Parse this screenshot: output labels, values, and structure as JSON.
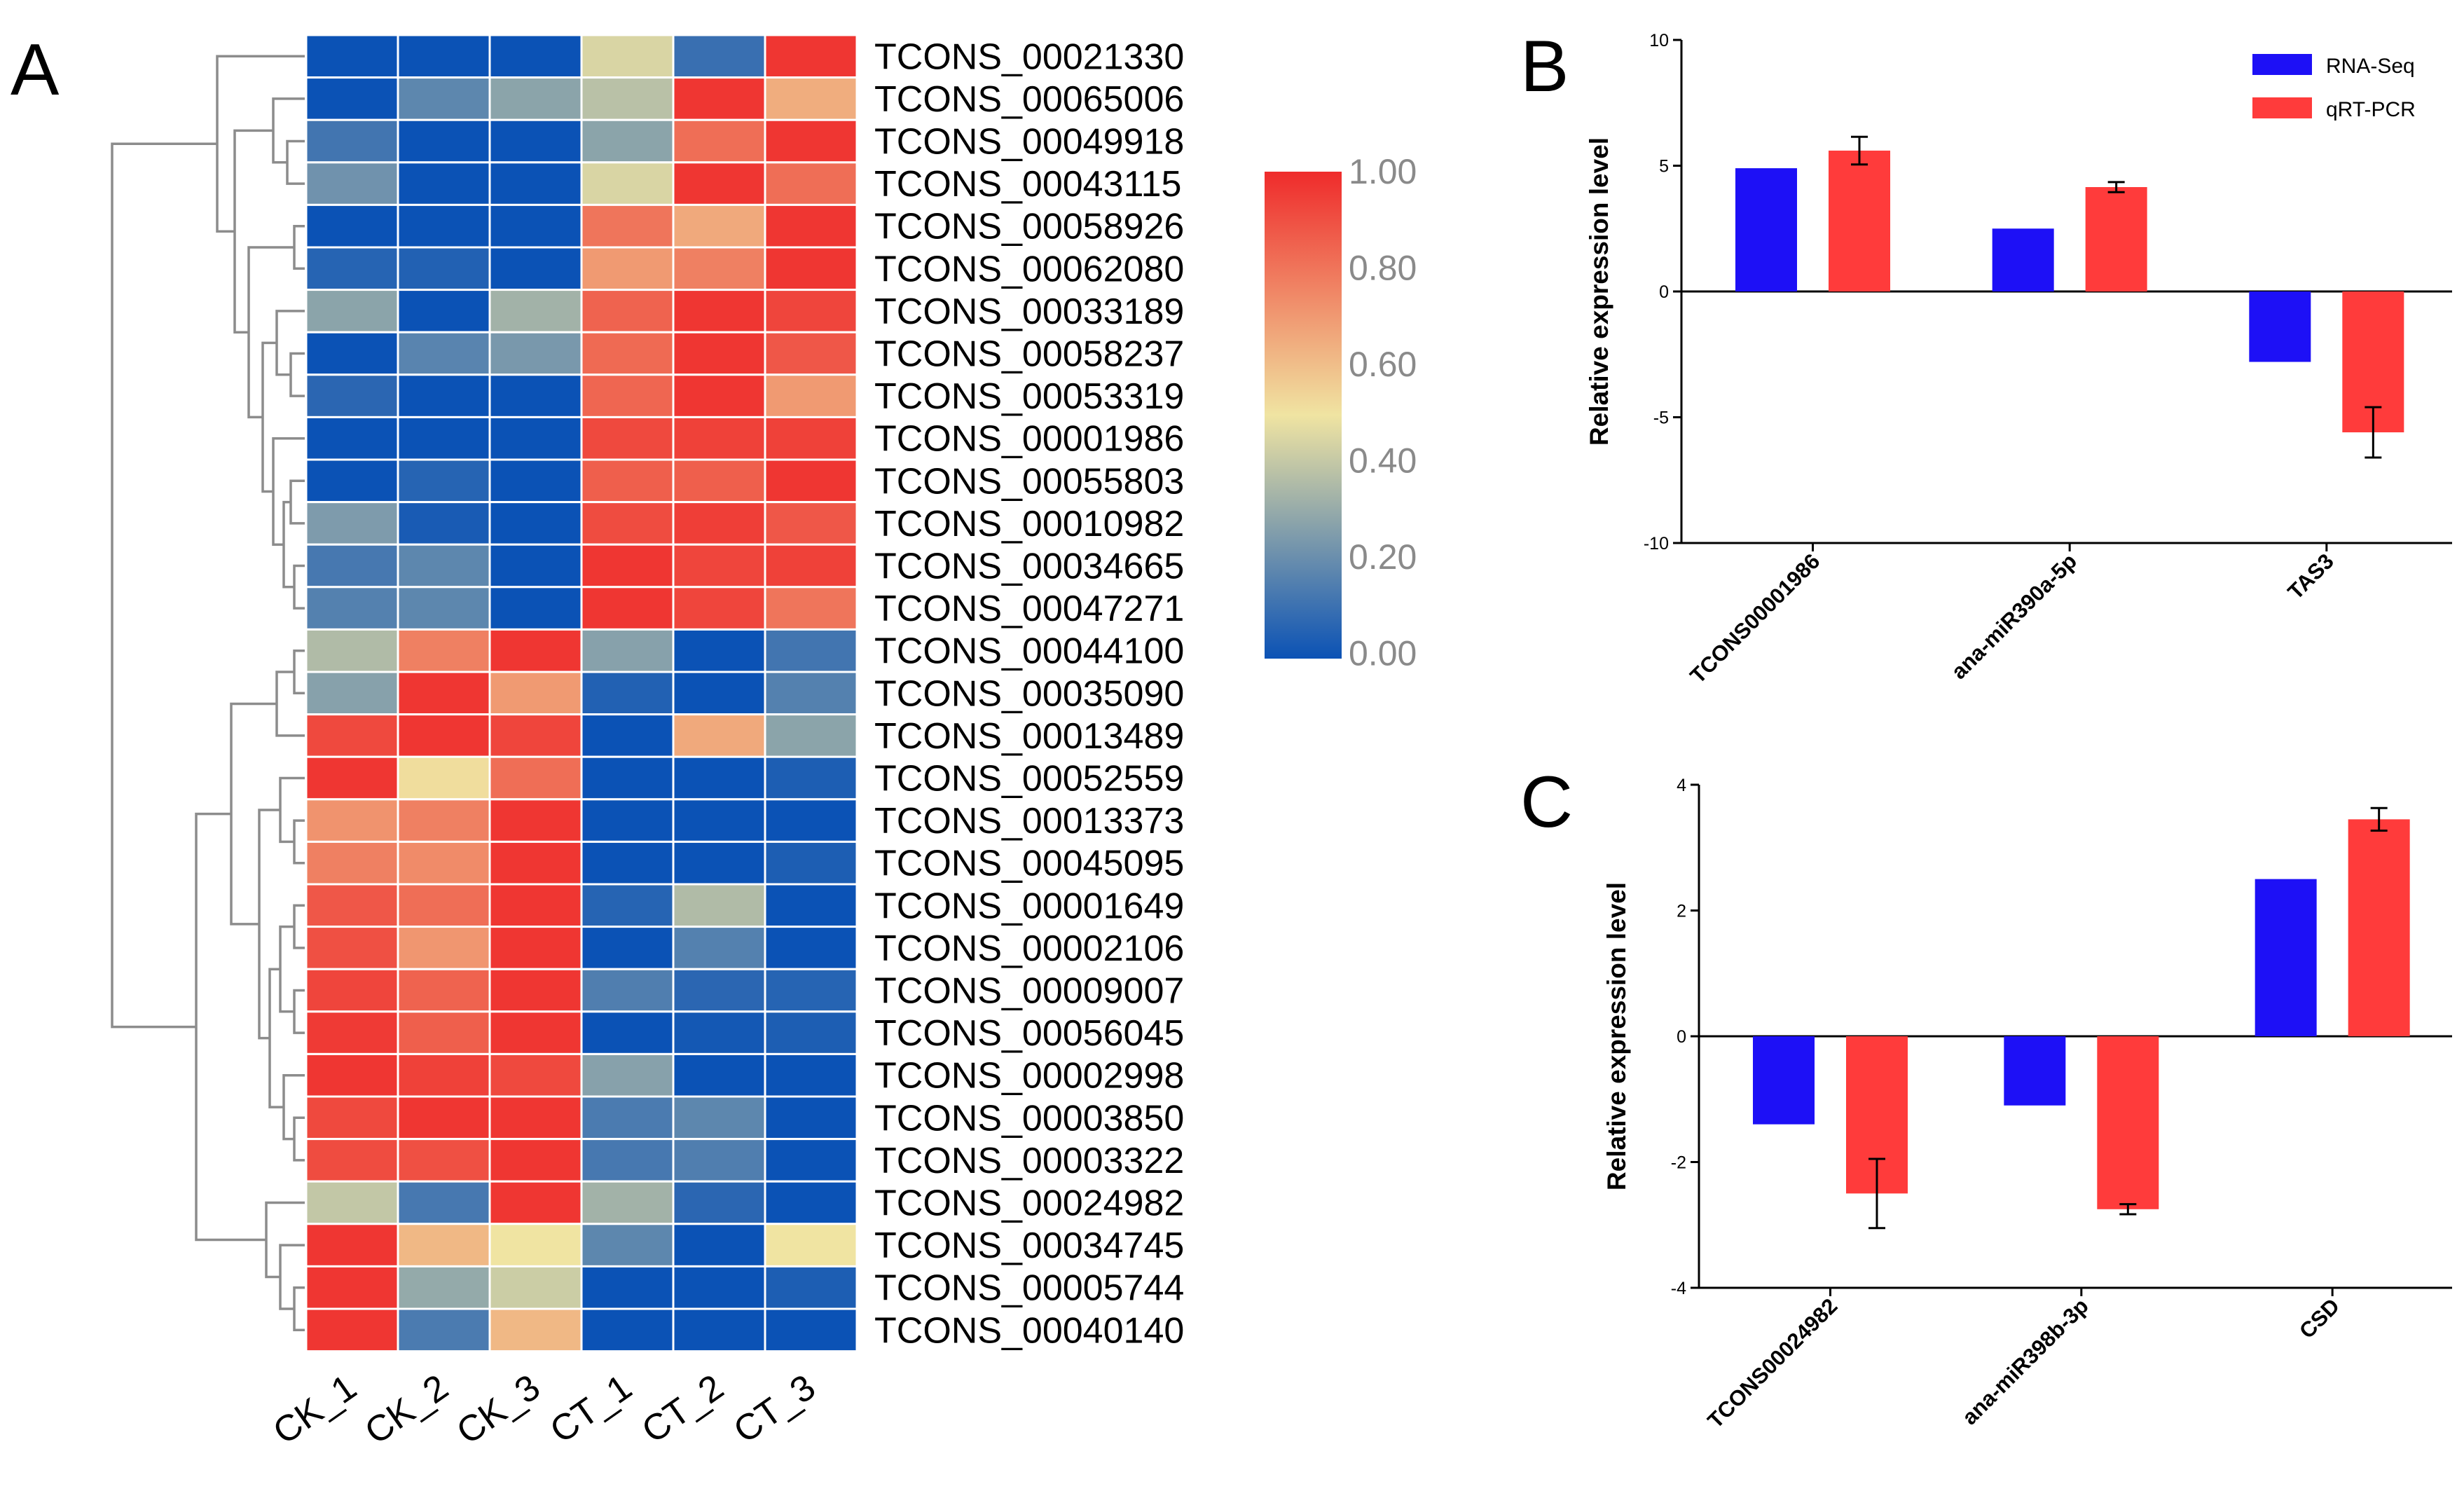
{
  "figure": {
    "panel_labels": [
      "A",
      "B",
      "C"
    ]
  },
  "chart_data": [
    {
      "type": "heatmap",
      "panel": "A",
      "title": "",
      "columns": [
        "CK_1",
        "CK_2",
        "CK_3",
        "CT_1",
        "CT_2",
        "CT_3"
      ],
      "rows": [
        "TCONS_00021330",
        "TCONS_00065006",
        "TCONS_00049918",
        "TCONS_00043115",
        "TCONS_00058926",
        "TCONS_00062080",
        "TCONS_00033189",
        "TCONS_00058237",
        "TCONS_00053319",
        "TCONS_00001986",
        "TCONS_00055803",
        "TCONS_00010982",
        "TCONS_00034665",
        "TCONS_00047271",
        "TCONS_00044100",
        "TCONS_00035090",
        "TCONS_00013489",
        "TCONS_00052559",
        "TCONS_00013373",
        "TCONS_00045095",
        "TCONS_00001649",
        "TCONS_00002106",
        "TCONS_00009007",
        "TCONS_00056045",
        "TCONS_00002998",
        "TCONS_00003850",
        "TCONS_00003322",
        "TCONS_00024982",
        "TCONS_00034745",
        "TCONS_00005744",
        "TCONS_00040140"
      ],
      "values": [
        [
          0.0,
          0.0,
          0.0,
          0.45,
          0.1,
          0.97
        ],
        [
          0.0,
          0.18,
          0.28,
          0.38,
          0.97,
          0.65
        ],
        [
          0.12,
          0.0,
          0.0,
          0.28,
          0.82,
          0.97
        ],
        [
          0.22,
          0.0,
          0.0,
          0.45,
          0.97,
          0.82
        ],
        [
          0.0,
          0.0,
          0.0,
          0.8,
          0.66,
          0.97
        ],
        [
          0.06,
          0.05,
          0.0,
          0.7,
          0.77,
          0.97
        ],
        [
          0.28,
          0.0,
          0.33,
          0.85,
          0.97,
          0.93
        ],
        [
          0.0,
          0.17,
          0.24,
          0.83,
          0.97,
          0.88
        ],
        [
          0.07,
          0.0,
          0.0,
          0.84,
          0.97,
          0.7
        ],
        [
          0.0,
          0.0,
          0.0,
          0.92,
          0.94,
          0.94
        ],
        [
          0.0,
          0.06,
          0.0,
          0.86,
          0.86,
          0.97
        ],
        [
          0.25,
          0.03,
          0.0,
          0.91,
          0.95,
          0.88
        ],
        [
          0.13,
          0.18,
          0.0,
          0.97,
          0.93,
          0.94
        ],
        [
          0.16,
          0.18,
          0.0,
          0.97,
          0.93,
          0.8
        ],
        [
          0.36,
          0.77,
          0.97,
          0.27,
          0.0,
          0.12
        ],
        [
          0.27,
          0.97,
          0.7,
          0.05,
          0.0,
          0.16
        ],
        [
          0.92,
          0.97,
          0.93,
          0.0,
          0.66,
          0.28
        ],
        [
          0.97,
          0.52,
          0.82,
          0.0,
          0.0,
          0.04
        ],
        [
          0.72,
          0.77,
          0.97,
          0.0,
          0.0,
          0.0
        ],
        [
          0.77,
          0.74,
          0.97,
          0.0,
          0.0,
          0.04
        ],
        [
          0.88,
          0.82,
          0.97,
          0.06,
          0.36,
          0.0
        ],
        [
          0.9,
          0.71,
          0.97,
          0.0,
          0.16,
          0.0
        ],
        [
          0.93,
          0.85,
          0.97,
          0.15,
          0.07,
          0.06
        ],
        [
          0.96,
          0.86,
          0.97,
          0.0,
          0.02,
          0.04
        ],
        [
          0.97,
          0.94,
          0.92,
          0.27,
          0.0,
          0.0
        ],
        [
          0.92,
          0.97,
          0.97,
          0.14,
          0.18,
          0.0
        ],
        [
          0.91,
          0.9,
          0.97,
          0.13,
          0.15,
          0.0
        ],
        [
          0.4,
          0.13,
          0.97,
          0.33,
          0.07,
          0.0
        ],
        [
          0.97,
          0.62,
          0.5,
          0.18,
          0.0,
          0.5
        ],
        [
          0.97,
          0.3,
          0.42,
          0.0,
          0.0,
          0.04
        ],
        [
          0.97,
          0.14,
          0.62,
          0.0,
          0.0,
          0.0
        ]
      ],
      "colorbar": {
        "min": 0.0,
        "max": 1.0,
        "tick_labels": [
          "1.00",
          "0.80",
          "0.60",
          "0.40",
          "0.20",
          "0.00"
        ],
        "colors": [
          "#0b52b5",
          "#f0e4a2",
          "#ef2b2b"
        ]
      },
      "dendrogram": true
    },
    {
      "type": "bar",
      "panel": "B",
      "categories": [
        "TCONS00001986",
        "ana-miR390a-5p",
        "TAS3"
      ],
      "series": [
        {
          "name": "RNA-Seq",
          "color": "#1d10f6",
          "values": [
            4.9,
            2.5,
            -2.8
          ]
        },
        {
          "name": "qRT-PCR",
          "color": "#ff3b3b",
          "values": [
            5.6,
            4.15,
            -5.6
          ],
          "errors": [
            0.55,
            0.2,
            1.0
          ]
        }
      ],
      "title": "",
      "xlabel": "",
      "ylabel": "Relative expression level",
      "ylim": [
        -10,
        10
      ],
      "yticks": [
        "10",
        "5",
        "0",
        "-5",
        "-10"
      ],
      "legend": "top-right"
    },
    {
      "type": "bar",
      "panel": "C",
      "categories": [
        "TCONS00024982",
        "ana-miR398b-3p",
        "CSD"
      ],
      "series": [
        {
          "name": "RNA-Seq",
          "color": "#1d10f6",
          "values": [
            -1.4,
            -1.1,
            2.5
          ]
        },
        {
          "name": "qRT-PCR",
          "color": "#ff3b3b",
          "values": [
            -2.5,
            -2.75,
            3.45
          ],
          "errors": [
            0.55,
            0.08,
            0.18
          ]
        }
      ],
      "title": "",
      "xlabel": "",
      "ylabel": "Relative expression level",
      "ylim": [
        -4,
        4
      ],
      "yticks": [
        "4",
        "2",
        "0",
        "-2",
        "-4"
      ],
      "legend": "none"
    }
  ]
}
